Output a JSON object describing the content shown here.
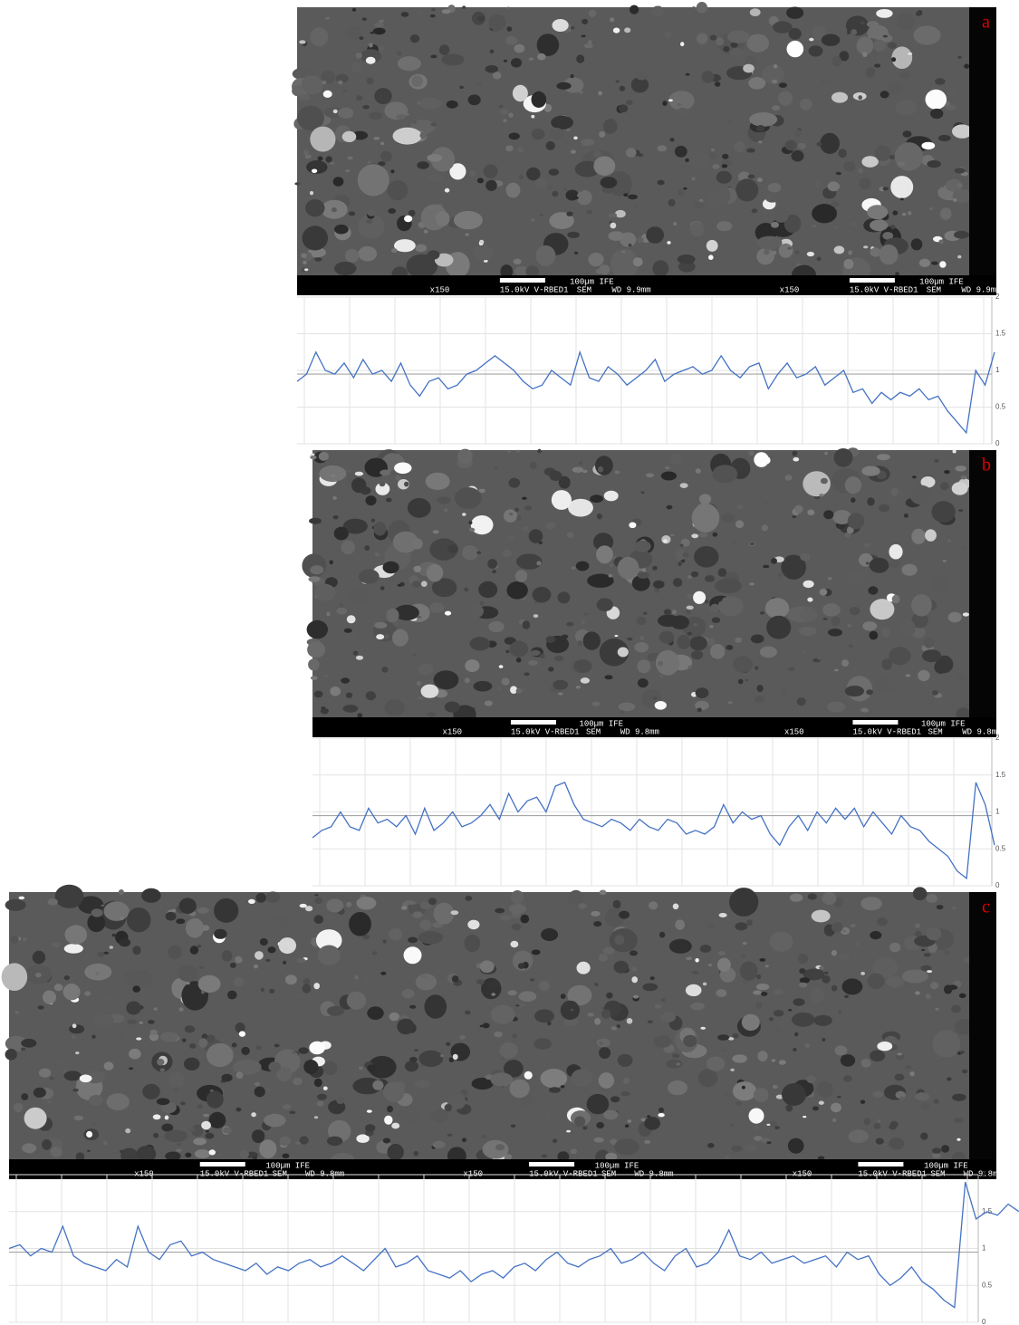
{
  "panels": [
    {
      "label": "a",
      "tiles": [
        {
          "scale": "100µm IFE",
          "mag": "x150",
          "kv": "15.0kV V-RBED1",
          "mode": "SEM",
          "wd": "WD 9.9mm"
        },
        {
          "scale": "100µm IFE",
          "mag": "x150",
          "kv": "15.0kV V-RBED1",
          "mode": "SEM",
          "wd": "WD 9.9mm"
        }
      ]
    },
    {
      "label": "b",
      "tiles": [
        {
          "scale": "100µm IFE",
          "mag": "x150",
          "kv": "15.0kV V-RBED1",
          "mode": "SEM",
          "wd": "WD 9.8mm"
        },
        {
          "scale": "100µm IFE",
          "mag": "x150",
          "kv": "15.0kV V-RBED1",
          "mode": "SEM",
          "wd": "WD 9.8mm"
        }
      ]
    },
    {
      "label": "c",
      "tiles": [
        {
          "scale": "100µm IFE",
          "mag": "x150",
          "kv": "15.0kV V-RBED1",
          "mode": "SEM",
          "wd": "WD 9.8mm"
        },
        {
          "scale": "100µm IFE",
          "mag": "x150",
          "kv": "15.0kV V-RBED1",
          "mode": "SEM",
          "wd": "WD 9.8mm"
        },
        {
          "scale": "100µm IFE",
          "mag": "x150",
          "kv": "15.0kV V-RBED1",
          "mode": "SEM",
          "wd": "WD 9.8mm"
        }
      ]
    }
  ],
  "chart_data": [
    {
      "type": "line",
      "ylim": [
        0,
        2
      ],
      "yticks": [
        0,
        0.5,
        1,
        1.5,
        2
      ],
      "grid": true,
      "reference_line": 0.95,
      "reference_color": "#a6a6a6",
      "series": [
        {
          "color": "#4472c4",
          "values": [
            0.85,
            0.95,
            1.25,
            1.0,
            0.95,
            1.1,
            0.9,
            1.15,
            0.95,
            1.0,
            0.85,
            1.1,
            0.8,
            0.65,
            0.85,
            0.9,
            0.75,
            0.8,
            0.95,
            1.0,
            1.1,
            1.2,
            1.1,
            1.0,
            0.85,
            0.75,
            0.8,
            1.0,
            0.9,
            0.8,
            1.25,
            0.9,
            0.85,
            1.05,
            0.95,
            0.8,
            0.9,
            1.0,
            1.15,
            0.85,
            0.95,
            1.0,
            1.05,
            0.95,
            1.0,
            1.2,
            1.0,
            0.9,
            1.05,
            1.1,
            0.75,
            0.95,
            1.1,
            0.9,
            0.95,
            1.05,
            0.8,
            0.9,
            1.0,
            0.7,
            0.75,
            0.55,
            0.7,
            0.6,
            0.7,
            0.65,
            0.75,
            0.6,
            0.65,
            0.45,
            0.3,
            0.15,
            1.0,
            0.8,
            1.25
          ]
        }
      ]
    },
    {
      "type": "line",
      "ylim": [
        0,
        2
      ],
      "yticks": [
        0,
        0.5,
        1,
        1.5,
        2
      ],
      "grid": true,
      "reference_line": 0.95,
      "reference_color": "#a6a6a6",
      "series": [
        {
          "color": "#4472c4",
          "values": [
            0.65,
            0.75,
            0.8,
            1.0,
            0.8,
            0.75,
            1.05,
            0.85,
            0.9,
            0.8,
            0.95,
            0.7,
            1.05,
            0.75,
            0.85,
            1.0,
            0.8,
            0.85,
            0.95,
            1.1,
            0.9,
            1.25,
            1.0,
            1.15,
            1.2,
            1.0,
            1.35,
            1.4,
            1.1,
            0.9,
            0.85,
            0.8,
            0.9,
            0.85,
            0.75,
            0.9,
            0.8,
            0.75,
            0.9,
            0.85,
            0.7,
            0.75,
            0.7,
            0.8,
            1.1,
            0.85,
            1.0,
            0.9,
            0.95,
            0.7,
            0.55,
            0.8,
            0.95,
            0.75,
            1.0,
            0.85,
            1.05,
            0.9,
            1.05,
            0.8,
            1.0,
            0.85,
            0.7,
            0.95,
            0.8,
            0.75,
            0.6,
            0.5,
            0.4,
            0.2,
            0.1,
            1.4,
            1.1,
            0.55
          ]
        }
      ]
    },
    {
      "type": "line",
      "ylim": [
        0,
        2
      ],
      "yticks": [
        0,
        0.5,
        1,
        1.5,
        2
      ],
      "grid": true,
      "reference_line": 0.95,
      "reference_color": "#a6a6a6",
      "series": [
        {
          "color": "#4472c4",
          "values": [
            1.0,
            1.05,
            0.9,
            1.0,
            0.95,
            1.3,
            0.9,
            0.8,
            0.75,
            0.7,
            0.85,
            0.75,
            1.3,
            0.95,
            0.85,
            1.05,
            1.1,
            0.9,
            0.95,
            0.85,
            0.8,
            0.75,
            0.7,
            0.8,
            0.65,
            0.75,
            0.7,
            0.8,
            0.85,
            0.75,
            0.8,
            0.9,
            0.8,
            0.7,
            0.85,
            1.0,
            0.75,
            0.8,
            0.9,
            0.7,
            0.65,
            0.6,
            0.7,
            0.55,
            0.65,
            0.7,
            0.6,
            0.75,
            0.8,
            0.7,
            0.85,
            0.95,
            0.8,
            0.75,
            0.85,
            0.9,
            1.0,
            0.8,
            0.85,
            0.95,
            0.8,
            0.7,
            0.9,
            1.0,
            0.75,
            0.8,
            0.95,
            1.25,
            0.9,
            0.85,
            0.95,
            0.8,
            0.85,
            0.9,
            0.8,
            0.85,
            0.9,
            0.75,
            0.95,
            0.85,
            0.9,
            0.65,
            0.5,
            0.6,
            0.75,
            0.55,
            0.45,
            0.3,
            0.2,
            1.9,
            1.4,
            1.5,
            1.45,
            1.6,
            1.5
          ]
        }
      ]
    }
  ]
}
